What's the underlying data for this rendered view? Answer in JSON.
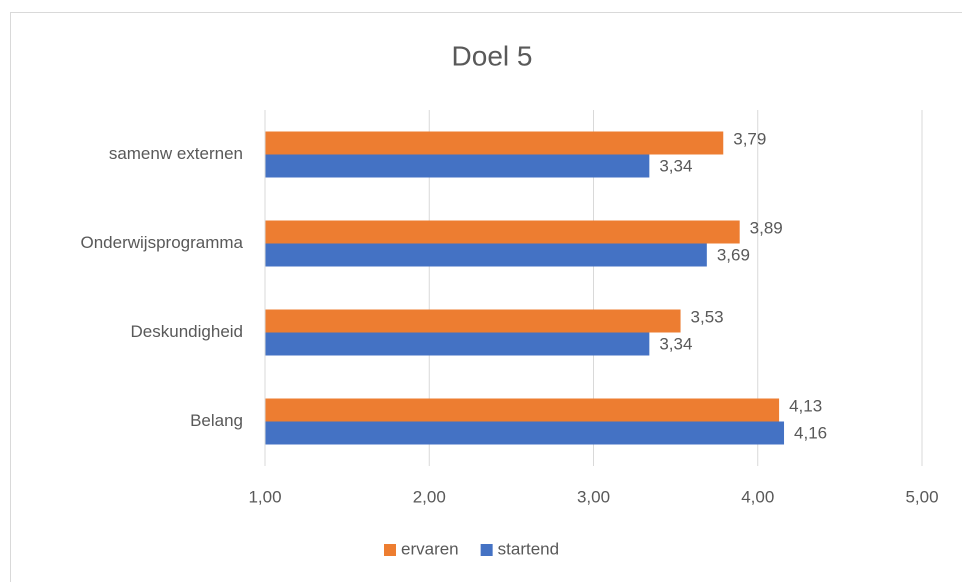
{
  "chart_data": {
    "type": "hbar",
    "title": "Doel 5",
    "categories": [
      "samenw externen",
      "Onderwijsprogramma",
      "Deskundigheid",
      "Belang"
    ],
    "series": [
      {
        "name": "ervaren",
        "color": "#ed7d31",
        "values": [
          3.79,
          3.89,
          3.53,
          4.13
        ],
        "value_labels": [
          "3,79",
          "3,89",
          "3,53",
          "4,13"
        ]
      },
      {
        "name": "startend",
        "color": "#4472c4",
        "values": [
          3.34,
          3.69,
          3.34,
          4.16
        ],
        "value_labels": [
          "3,34",
          "3,69",
          "3,34",
          "4,16"
        ]
      }
    ],
    "xlim": [
      1,
      5
    ],
    "xticks": [
      {
        "value": 1,
        "label": "1,00"
      },
      {
        "value": 2,
        "label": "2,00"
      },
      {
        "value": 3,
        "label": "3,00"
      },
      {
        "value": 4,
        "label": "4,00"
      },
      {
        "value": 5,
        "label": "5,00"
      }
    ],
    "grid": true,
    "legend": "bottom"
  }
}
